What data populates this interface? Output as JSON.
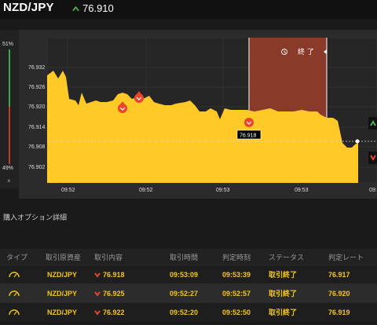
{
  "header": {
    "pair": "NZD/JPY",
    "price": "76.910"
  },
  "gauge": {
    "top": "51%",
    "bottom": "49%",
    "close": "×"
  },
  "chart": {
    "y_ticks": [
      "76.932",
      "76.926",
      "76.920",
      "76.914",
      "76.908",
      "76.902"
    ],
    "x_ticks": [
      "09:52",
      "09:52",
      "09:53",
      "09:53",
      "09:"
    ],
    "end_label": "終 了",
    "marker_label": "76.918",
    "colors": {
      "area": "#ffc928",
      "shade": "#8a3a28",
      "down": "#e8452c",
      "up": "#4caf50"
    }
  },
  "section_title": "購入オプション詳細",
  "table": {
    "headers": [
      "タイプ",
      "取引原資産",
      "取引内容",
      "取引時間",
      "判定時刻",
      "ステータス",
      "判定レート"
    ],
    "rows": [
      {
        "asset": "NZD/JPY",
        "content": "76.918",
        "time": "09:53:09",
        "judge": "09:53:39",
        "status": "取引終了",
        "rate": "76.917"
      },
      {
        "asset": "NZD/JPY",
        "content": "76.925",
        "time": "09:52:27",
        "judge": "09:52:57",
        "status": "取引終了",
        "rate": "76.920"
      },
      {
        "asset": "NZD/JPY",
        "content": "76.922",
        "time": "09:52:20",
        "judge": "09:52:50",
        "status": "取引終了",
        "rate": "76.919"
      }
    ]
  }
}
